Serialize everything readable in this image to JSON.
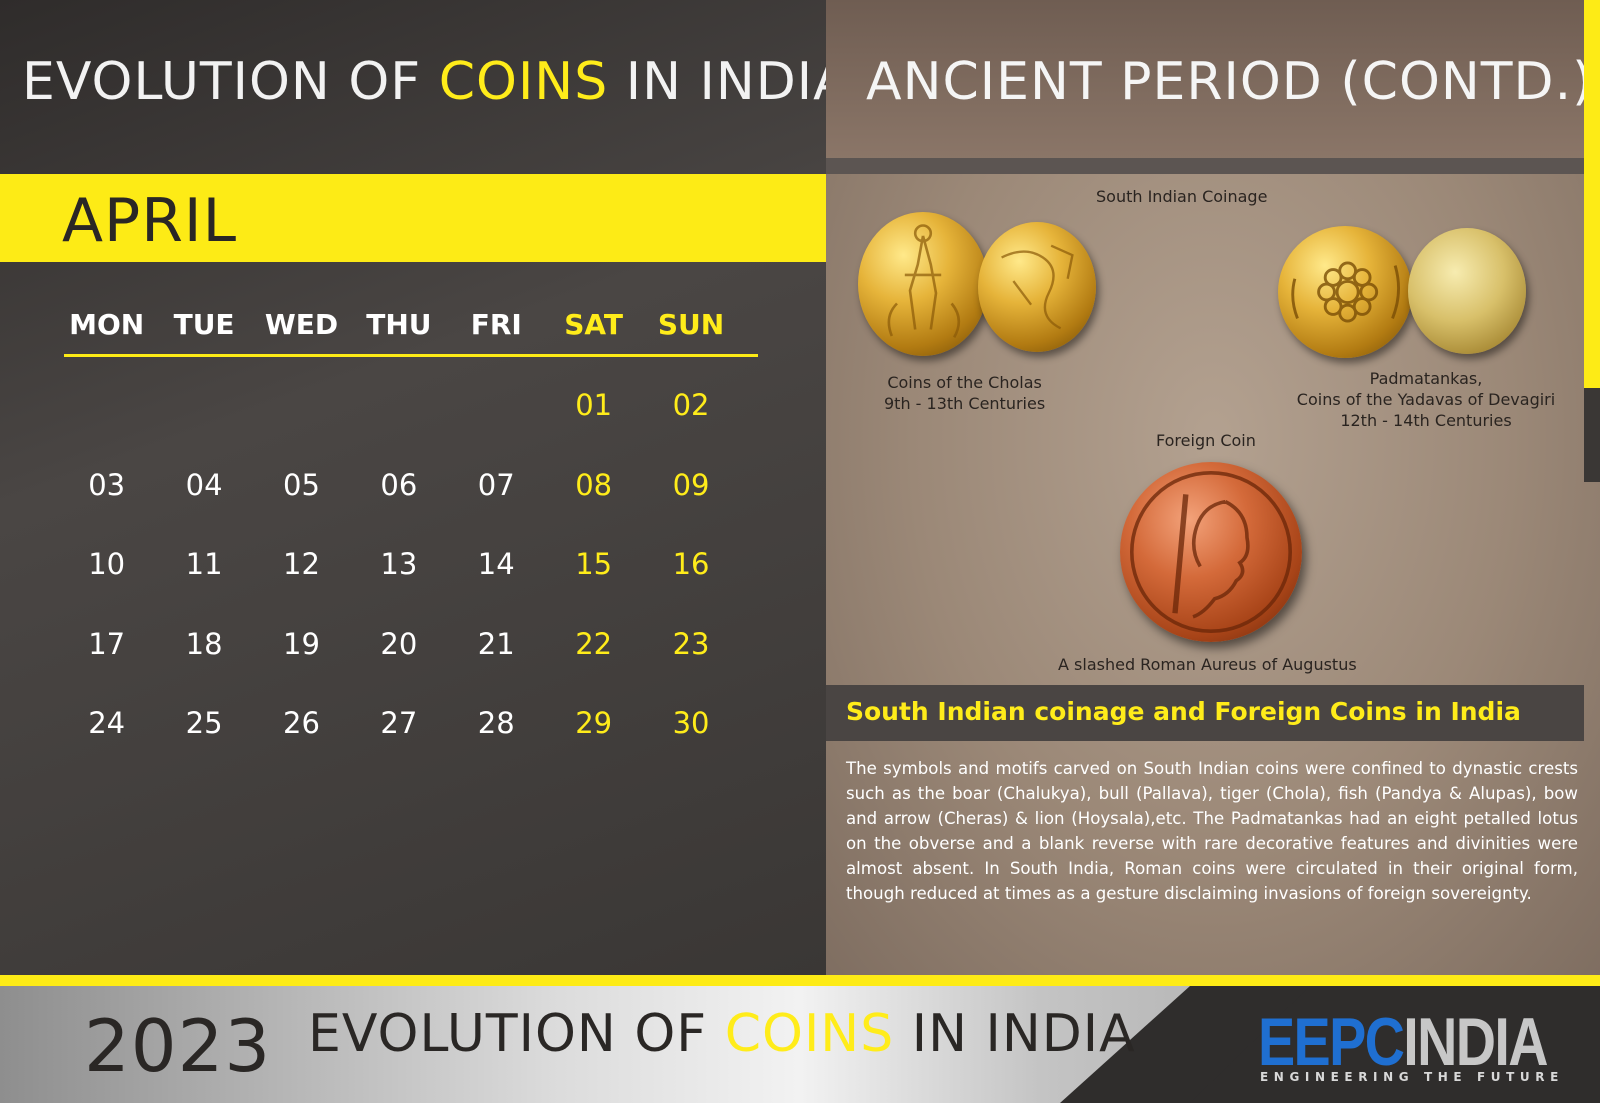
{
  "left_title": {
    "part1": "EVOLUTION OF ",
    "highlight": "COINS",
    "part2": " IN INDIA"
  },
  "month": "APRIL",
  "weekdays": [
    {
      "label": "MON",
      "weekend": false
    },
    {
      "label": "TUE",
      "weekend": false
    },
    {
      "label": "WED",
      "weekend": false
    },
    {
      "label": "THU",
      "weekend": false
    },
    {
      "label": "FRI",
      "weekend": false
    },
    {
      "label": "SAT",
      "weekend": true
    },
    {
      "label": "SUN",
      "weekend": true
    }
  ],
  "weeks": [
    [
      "",
      "",
      "",
      "",
      "",
      "01",
      "02"
    ],
    [
      "03",
      "04",
      "05",
      "06",
      "07",
      "08",
      "09"
    ],
    [
      "10",
      "11",
      "12",
      "13",
      "14",
      "15",
      "16"
    ],
    [
      "17",
      "18",
      "19",
      "20",
      "21",
      "22",
      "23"
    ],
    [
      "24",
      "25",
      "26",
      "27",
      "28",
      "29",
      "30"
    ]
  ],
  "right_title": "ANCIENT PERIOD (CONTD.)",
  "captions": {
    "south_indian": "South Indian Coinage",
    "cholas_line1": "Coins of the Cholas",
    "cholas_line2": "9th - 13th Centuries",
    "padma_line1": "Padmatankas,",
    "padma_line2": "Coins of the Yadavas of Devagiri",
    "padma_line3": "12th - 14th Centuries",
    "foreign": "Foreign Coin",
    "roman": "A slashed Roman Aureus of Augustus"
  },
  "sub_heading": "South Indian coinage and Foreign Coins in India",
  "body_text": "The symbols and motifs  carved on South Indian coins were confined to dynastic crests  such as the boar (Chalukya), bull (Pallava), tiger (Chola), fish (Pandya & Alupas), bow and arrow (Cheras) & lion (Hoysala),etc. The Padmatankas had an eight petalled lotus on the obverse and a blank reverse with rare decorative features and divinities were almost absent. In South India, Roman coins were circulated in their original form, though reduced at times as a gesture  disclaiming invasions of foreign sovereignty.",
  "footer": {
    "year": "2023",
    "title_part1": "EVOLUTION OF ",
    "title_highlight": "COINS",
    "title_part2": " IN INDIA",
    "brand_part1": "EEPC",
    "brand_part2": "INDIA",
    "tagline": "ENGINEERING THE FUTURE"
  },
  "colors": {
    "accent_yellow": "#fdeb16",
    "brand_blue": "#1f6fd1",
    "dark_panel": "#3d3a38"
  }
}
